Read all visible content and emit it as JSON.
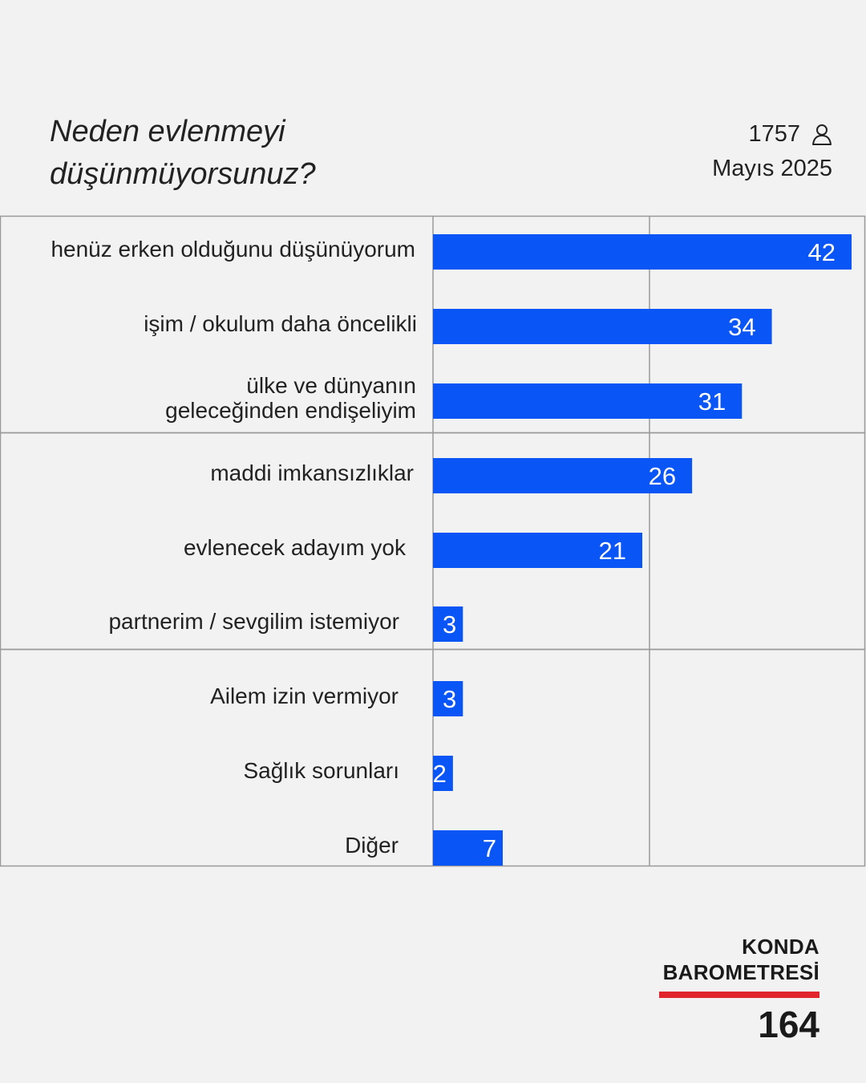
{
  "header": {
    "title_line1": "Neden evlenmeyi",
    "title_line2": "düşünmüyorsunuz?",
    "sample_size": "1757",
    "sample_icon": "person-icon",
    "date": "Mayıs 2025"
  },
  "chart_data": {
    "type": "bar",
    "orientation": "horizontal",
    "title": "Neden evlenmeyi düşünmüyorsunuz?",
    "categories": [
      [
        "henüz erken olduğunu düşünüyorum"
      ],
      [
        "işim / okulum daha öncelikli"
      ],
      [
        "ülke ve dünyanın",
        "geleceğinden endişeliyim"
      ],
      [
        "maddi imkansızlıklar"
      ],
      [
        "evlenecek adayım yok"
      ],
      [
        "partnerim / sevgilim istemiyor"
      ],
      [
        "Ailem izin vermiyor"
      ],
      [
        "Sağlık sorunları"
      ],
      [
        "Diğer"
      ]
    ],
    "values": [
      42,
      34,
      31,
      26,
      21,
      3,
      3,
      2,
      7
    ],
    "xlim": [
      0,
      43
    ],
    "grid": true,
    "bar_color": "#0a55f5",
    "label_color": "#ffffff"
  },
  "footer": {
    "brand_line1": "KONDA",
    "brand_line2": "BAROMETRESİ",
    "issue_number": "164",
    "accent_color": "#e0262c"
  }
}
